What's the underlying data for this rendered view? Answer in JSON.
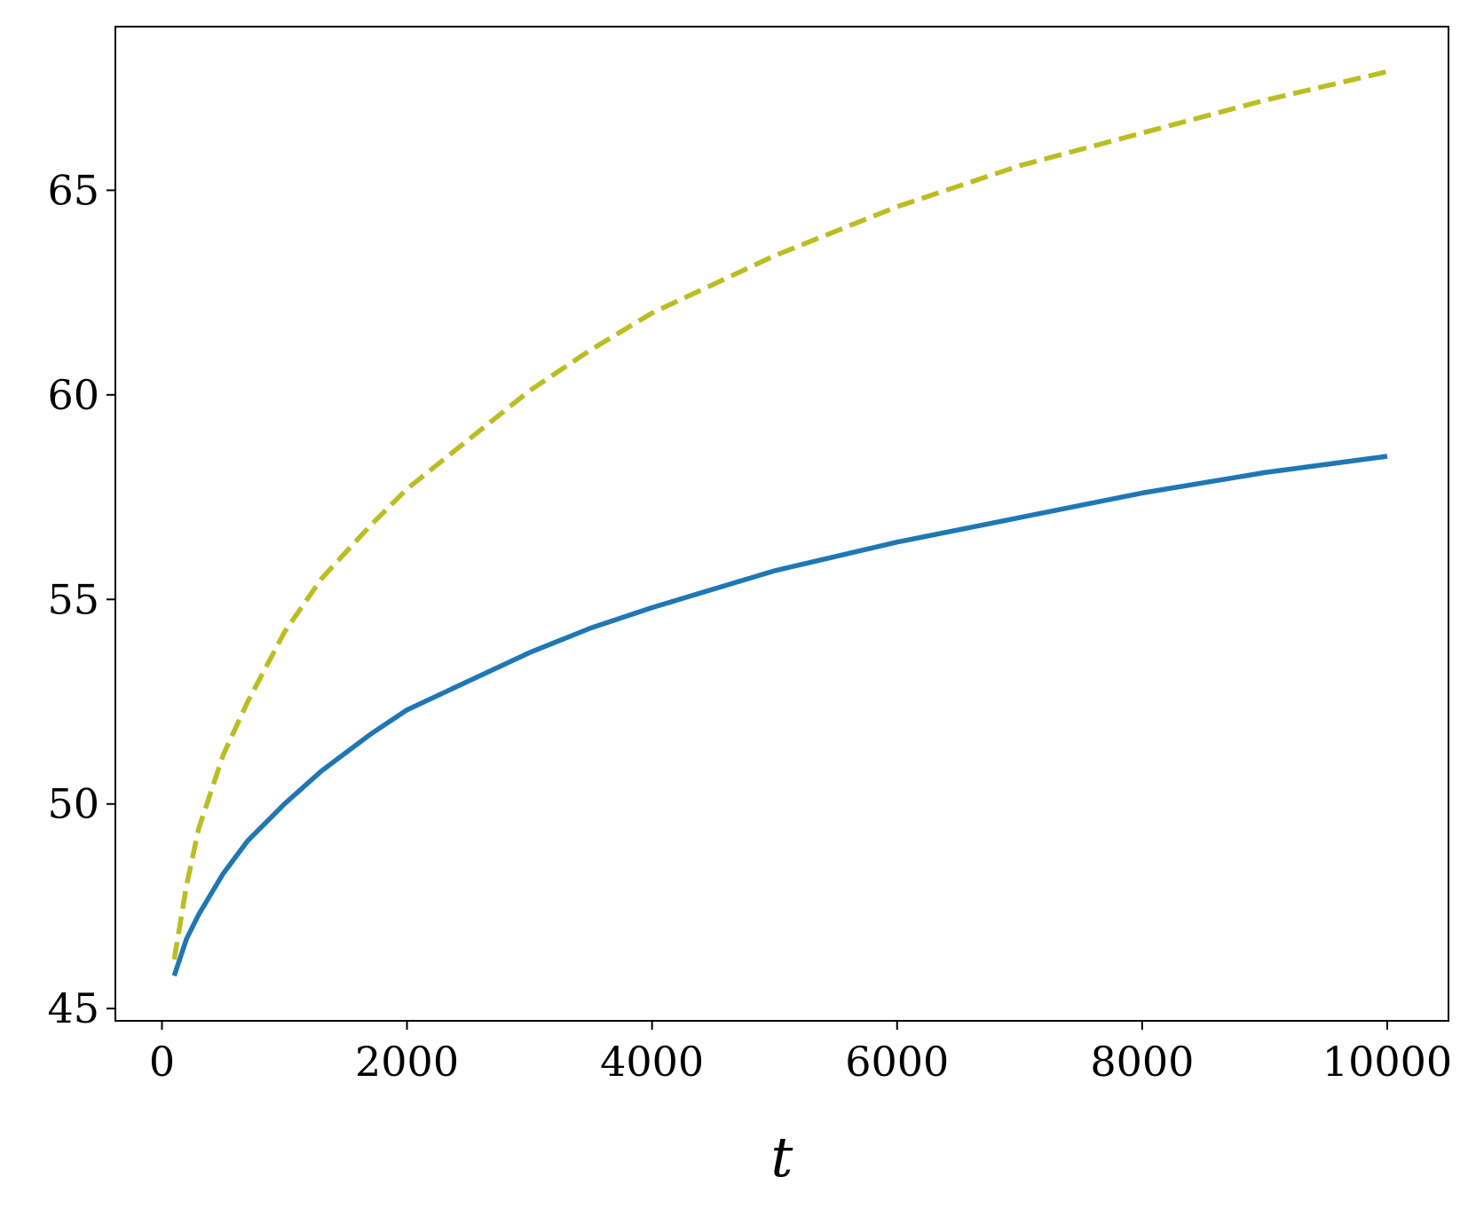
{
  "chart_data": {
    "type": "line",
    "title": "",
    "xlabel": "t",
    "ylabel": "",
    "xlim": [
      -380,
      10500
    ],
    "ylim": [
      44.7,
      69.0
    ],
    "xticks": [
      0,
      2000,
      4000,
      6000,
      8000,
      10000
    ],
    "yticks": [
      45,
      50,
      55,
      60,
      65
    ],
    "xtick_labels": [
      "0",
      "2000",
      "4000",
      "6000",
      "8000",
      "10000"
    ],
    "ytick_labels": [
      "45",
      "50",
      "55",
      "60",
      "65"
    ],
    "grid": false,
    "legend": "none",
    "series": [
      {
        "color": "#1f77b4",
        "style": "solid",
        "x": [
          100,
          200,
          300,
          400,
          500,
          700,
          1000,
          1300,
          1700,
          2000,
          2500,
          3000,
          3500,
          4000,
          5000,
          6000,
          7000,
          8000,
          9000,
          10000
        ],
        "y": [
          45.8,
          46.7,
          47.3,
          47.8,
          48.3,
          49.1,
          50.0,
          50.8,
          51.7,
          52.3,
          53.0,
          53.7,
          54.3,
          54.8,
          55.7,
          56.4,
          57.0,
          57.6,
          58.1,
          58.5
        ]
      },
      {
        "color": "#bcbd22",
        "style": "dashed",
        "x": [
          100,
          200,
          300,
          500,
          700,
          1000,
          1300,
          1700,
          2000,
          2500,
          3000,
          3500,
          4000,
          5000,
          6000,
          7000,
          8000,
          9000,
          10000
        ],
        "y": [
          46.2,
          48.0,
          49.4,
          51.2,
          52.5,
          54.2,
          55.5,
          56.8,
          57.7,
          58.9,
          60.1,
          61.1,
          62.0,
          63.4,
          64.6,
          65.6,
          66.4,
          67.2,
          67.9
        ]
      }
    ]
  }
}
